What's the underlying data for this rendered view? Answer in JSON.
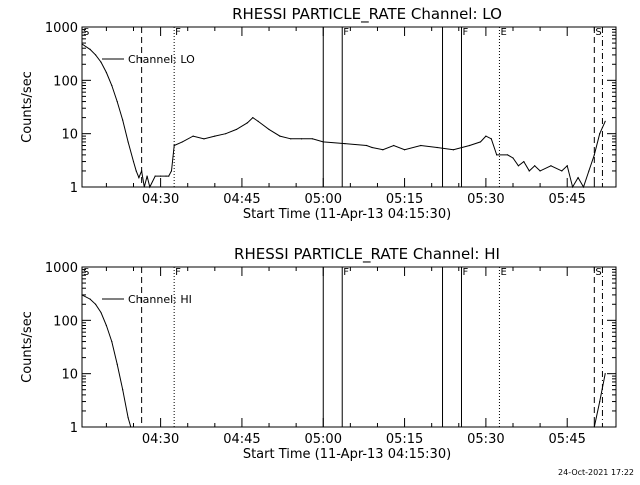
{
  "footer_timestamp": "24-Oct-2021 17:22",
  "chart_data": [
    {
      "type": "line",
      "title": "RHESSI PARTICLE_RATE Channel: LO",
      "xlabel": "Start Time (11-Apr-13 04:15:30)",
      "ylabel": "Counts/sec",
      "y_scale": "log",
      "ylim": [
        1,
        1000
      ],
      "xlim": [
        "04:15:30",
        "05:54:00"
      ],
      "y_ticks": [
        1,
        10,
        100,
        1000
      ],
      "y_tick_labels": [
        "1",
        "10",
        "100",
        "1000"
      ],
      "x_ticks": [
        "04:30",
        "04:45",
        "05:00",
        "05:15",
        "05:30",
        "05:45"
      ],
      "legend": {
        "label": "Channel: LO",
        "position": "top-left"
      },
      "series": [
        {
          "name": "Channel: LO",
          "points": [
            [
              "04:15:30",
              480
            ],
            [
              "04:17:00",
              380
            ],
            [
              "04:18:00",
              300
            ],
            [
              "04:19:00",
              220
            ],
            [
              "04:20:00",
              140
            ],
            [
              "04:21:00",
              80
            ],
            [
              "04:22:00",
              40
            ],
            [
              "04:23:00",
              18
            ],
            [
              "04:24:00",
              7
            ],
            [
              "04:25:00",
              3
            ],
            [
              "04:25:30",
              2
            ],
            [
              "04:26:00",
              1.5
            ],
            [
              "04:26:30",
              2
            ],
            [
              "04:27:00",
              1
            ],
            [
              "04:27:30",
              1.6
            ],
            [
              "04:28:00",
              1
            ],
            [
              "04:29:00",
              1.6
            ],
            [
              "04:30:00",
              1.6
            ],
            [
              "04:31:00",
              1.6
            ],
            [
              "04:31:30",
              1.6
            ],
            [
              "04:32:00",
              2
            ],
            [
              "04:32:30",
              6
            ],
            [
              "04:34:00",
              7
            ],
            [
              "04:36:00",
              9
            ],
            [
              "04:38:00",
              8
            ],
            [
              "04:40:00",
              9
            ],
            [
              "04:42:00",
              10
            ],
            [
              "04:44:00",
              12
            ],
            [
              "04:46:00",
              16
            ],
            [
              "04:47:00",
              20
            ],
            [
              "04:48:00",
              17
            ],
            [
              "04:50:00",
              12
            ],
            [
              "04:52:00",
              9
            ],
            [
              "04:54:00",
              8
            ],
            [
              "04:56:00",
              8
            ],
            [
              "04:58:00",
              8
            ],
            [
              "05:00:00",
              7
            ],
            [
              "05:04:00",
              6.5
            ],
            [
              "05:08:00",
              6
            ],
            [
              "05:09:00",
              5.5
            ],
            [
              "05:11:00",
              5
            ],
            [
              "05:13:00",
              6
            ],
            [
              "05:15:00",
              5
            ],
            [
              "05:18:00",
              6
            ],
            [
              "05:21:00",
              5.5
            ],
            [
              "05:24:00",
              5
            ],
            [
              "05:27:00",
              6
            ],
            [
              "05:29:00",
              7
            ],
            [
              "05:30:00",
              9
            ],
            [
              "05:31:00",
              8
            ],
            [
              "05:32:00",
              4
            ],
            [
              "05:34:00",
              4
            ],
            [
              "05:35:00",
              3.5
            ],
            [
              "05:36:00",
              2.5
            ],
            [
              "05:37:00",
              3
            ],
            [
              "05:38:00",
              2
            ],
            [
              "05:39:00",
              2.5
            ],
            [
              "05:40:00",
              2
            ],
            [
              "05:42:00",
              2.5
            ],
            [
              "05:44:00",
              2
            ],
            [
              "05:45:00",
              2.5
            ],
            [
              "05:46:00",
              1
            ],
            [
              "05:47:00",
              1.5
            ],
            [
              "05:48:00",
              1
            ],
            [
              "05:49:00",
              2
            ],
            [
              "05:50:00",
              4
            ],
            [
              "05:51:00",
              10
            ],
            [
              "05:52:00",
              17
            ]
          ]
        }
      ],
      "markers": [
        {
          "label": "S",
          "time": "04:15:30",
          "style": "solid"
        },
        {
          "label": "",
          "time": "04:26:30",
          "style": "dashed"
        },
        {
          "label": "F",
          "time": "04:32:30",
          "style": "dotted"
        },
        {
          "label": "",
          "time": "05:00:00",
          "style": "solid"
        },
        {
          "label": "F",
          "time": "05:03:30",
          "style": "solid"
        },
        {
          "label": "",
          "time": "05:22:00",
          "style": "solid"
        },
        {
          "label": "F",
          "time": "05:25:30",
          "style": "solid"
        },
        {
          "label": "E",
          "time": "05:32:30",
          "style": "dotted"
        },
        {
          "label": "S",
          "time": "05:50:00",
          "style": "dashed"
        },
        {
          "label": "",
          "time": "05:51:30",
          "style": "dashdot"
        }
      ]
    },
    {
      "type": "line",
      "title": "RHESSI PARTICLE_RATE Channel: HI",
      "xlabel": "Start Time (11-Apr-13 04:15:30)",
      "ylabel": "Counts/sec",
      "y_scale": "log",
      "ylim": [
        1,
        1000
      ],
      "xlim": [
        "04:15:30",
        "05:54:00"
      ],
      "y_ticks": [
        1,
        10,
        100,
        1000
      ],
      "y_tick_labels": [
        "1",
        "10",
        "100",
        "1000"
      ],
      "x_ticks": [
        "04:30",
        "04:45",
        "05:00",
        "05:15",
        "05:30",
        "05:45"
      ],
      "legend": {
        "label": "Channel: HI",
        "position": "top-left"
      },
      "series": [
        {
          "name": "Channel: HI",
          "points": [
            [
              "04:15:30",
              300
            ],
            [
              "04:17:00",
              250
            ],
            [
              "04:18:00",
              200
            ],
            [
              "04:19:00",
              140
            ],
            [
              "04:20:00",
              80
            ],
            [
              "04:21:00",
              40
            ],
            [
              "04:22:00",
              15
            ],
            [
              "04:23:00",
              5
            ],
            [
              "04:24:00",
              1.5
            ],
            [
              "04:24:30",
              1
            ],
            [
              "05:50:00",
              1
            ],
            [
              "05:51:00",
              3
            ],
            [
              "05:52:00",
              10
            ]
          ]
        }
      ],
      "markers": [
        {
          "label": "S",
          "time": "04:15:30",
          "style": "solid"
        },
        {
          "label": "",
          "time": "04:26:30",
          "style": "dashed"
        },
        {
          "label": "F",
          "time": "04:32:30",
          "style": "dotted"
        },
        {
          "label": "",
          "time": "05:00:00",
          "style": "solid"
        },
        {
          "label": "F",
          "time": "05:03:30",
          "style": "solid"
        },
        {
          "label": "",
          "time": "05:22:00",
          "style": "solid"
        },
        {
          "label": "F",
          "time": "05:25:30",
          "style": "solid"
        },
        {
          "label": "E",
          "time": "05:32:30",
          "style": "dotted"
        },
        {
          "label": "S",
          "time": "05:50:00",
          "style": "dashed"
        },
        {
          "label": "",
          "time": "05:51:30",
          "style": "dashdot"
        }
      ]
    }
  ]
}
